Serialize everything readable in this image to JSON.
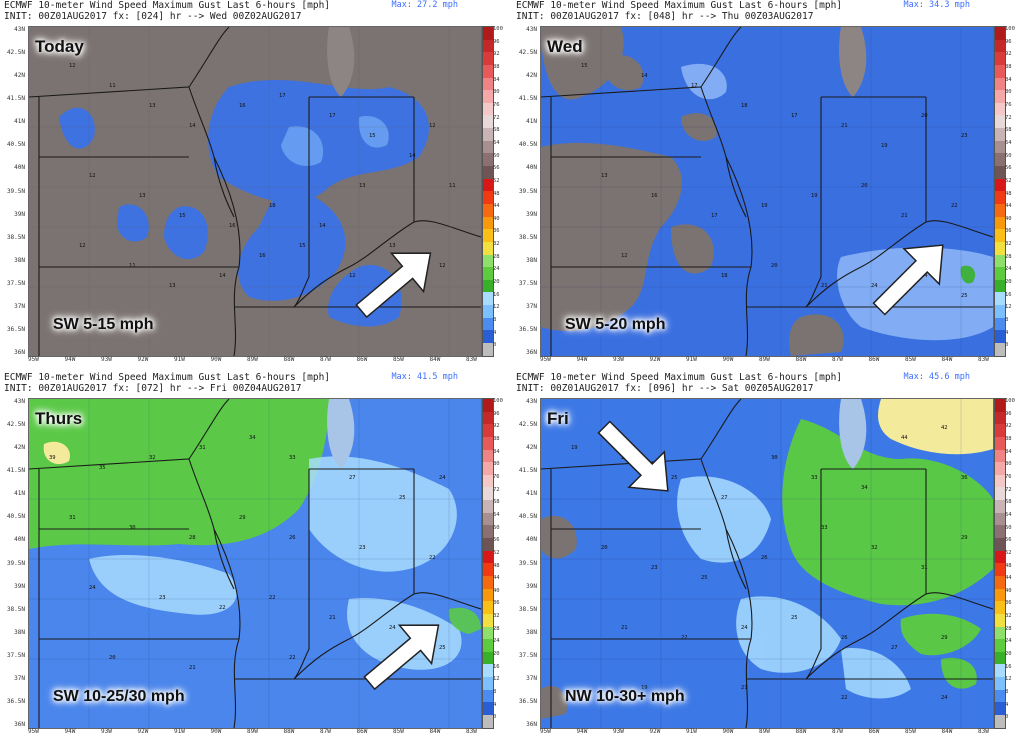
{
  "panels": [
    {
      "title": "ECMWF 10-meter Wind Speed Maximum Gust Last 6-hours [mph]",
      "init": "INIT: 00Z01AUG2017 fx: [024] hr --> Wed 00Z02AUG2017",
      "max": "Max: 27.2 mph",
      "day": "Today",
      "wind": "SW 5-15 mph",
      "arrow_direction": "from southwest (pointing northeast)",
      "dominant_color": "#7d7574"
    },
    {
      "title": "ECMWF 10-meter Wind Speed Maximum Gust Last 6-hours [mph]",
      "init": "INIT: 00Z01AUG2017 fx: [048] hr --> Thu 00Z03AUG2017",
      "max": "Max: 34.3 mph",
      "day": "Wed",
      "wind": "SW 5-20 mph",
      "arrow_direction": "from southwest (pointing northeast)",
      "dominant_color": "#3a6fe0"
    },
    {
      "title": "ECMWF 10-meter Wind Speed Maximum Gust Last 6-hours [mph]",
      "init": "INIT: 00Z01AUG2017 fx: [072] hr --> Fri 00Z04AUG2017",
      "max": "Max: 41.5 mph",
      "day": "Thurs",
      "wind": "SW 10-25/30 mph",
      "arrow_direction": "from southwest (pointing northeast)",
      "dominant_color": "#4a86ec"
    },
    {
      "title": "ECMWF 10-meter Wind Speed Maximum Gust Last 6-hours [mph]",
      "init": "INIT: 00Z01AUG2017 fx: [096] hr --> Sat 00Z05AUG2017",
      "max": "Max: 45.6 mph",
      "day": "Fri",
      "wind": "NW 10-30+ mph",
      "arrow_direction": "from northwest (pointing southeast)",
      "dominant_color": "#3c78e6"
    }
  ],
  "axes": {
    "lat": [
      "43N",
      "42.5N",
      "42N",
      "41.5N",
      "41N",
      "40.5N",
      "40N",
      "39.5N",
      "39N",
      "38.5N",
      "38N",
      "37.5N",
      "37N",
      "36.5N",
      "36N"
    ],
    "lon": [
      "95W",
      "94W",
      "93W",
      "92W",
      "91W",
      "90W",
      "89W",
      "88W",
      "87W",
      "86W",
      "85W",
      "84W",
      "83W"
    ]
  },
  "colorbar": {
    "labels": [
      "100",
      "96",
      "92",
      "88",
      "84",
      "80",
      "76",
      "72",
      "68",
      "64",
      "60",
      "56",
      "52",
      "48",
      "44",
      "40",
      "36",
      "32",
      "28",
      "24",
      "20",
      "16",
      "12",
      "8",
      "4",
      "0"
    ],
    "colors": [
      "#b01a1a",
      "#c52828",
      "#d93a3a",
      "#e85a5a",
      "#f08484",
      "#f5a8a8",
      "#f5c8c8",
      "#e8d8d8",
      "#c8b4b4",
      "#a89090",
      "#8a7070",
      "#6e5454",
      "#d81818",
      "#f03a14",
      "#f56a10",
      "#f8980c",
      "#fac018",
      "#f2e040",
      "#8ee06a",
      "#5ccc3e",
      "#38b02a",
      "#a8dcff",
      "#7cc0ff",
      "#4a8cf0",
      "#2a5ed4",
      "#bdbdbd"
    ]
  }
}
